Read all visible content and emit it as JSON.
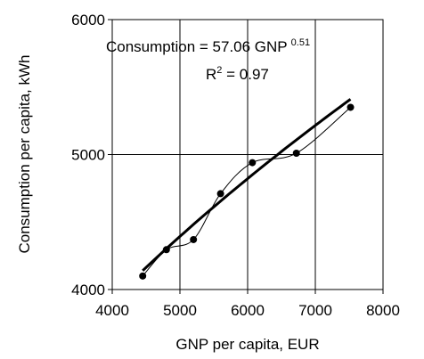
{
  "chart_data": {
    "type": "scatter",
    "xlabel": "GNP per capita, EUR",
    "ylabel": "Consumption per capita, kWh",
    "xlim": [
      4000,
      8000
    ],
    "ylim": [
      4000,
      6000
    ],
    "x_ticks": [
      "4000",
      "5000",
      "6000",
      "7000",
      "8000"
    ],
    "y_ticks": [
      "4000",
      "5000",
      "6000"
    ],
    "grid": true,
    "series": [
      {
        "points": [
          {
            "x": 4450,
            "y": 4100
          },
          {
            "x": 4800,
            "y": 4295
          },
          {
            "x": 5200,
            "y": 4370
          },
          {
            "x": 5600,
            "y": 4710
          },
          {
            "x": 6070,
            "y": 4940
          },
          {
            "x": 6720,
            "y": 5010
          },
          {
            "x": 7520,
            "y": 5350
          }
        ]
      }
    ],
    "trend": {
      "coefficient": 57.06,
      "exponent": 0.51,
      "x_range": [
        4450,
        7520
      ]
    },
    "annotation": {
      "equation_prefix": "Consumption = 57.06 GNP",
      "equation_exponent": "0.51",
      "r2_prefix": "R",
      "r2_sup": "2",
      "r2_value": " = 0.97"
    }
  }
}
